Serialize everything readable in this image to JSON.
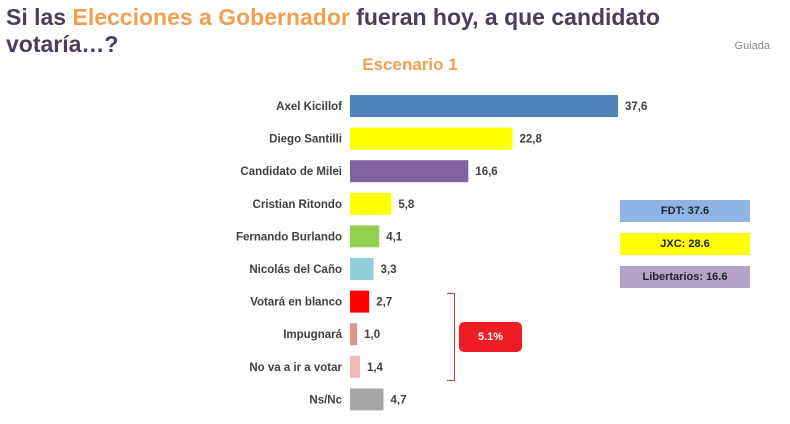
{
  "header": {
    "title_part1": "Si las ",
    "title_highlight": "Elecciones a Gobernador",
    "title_part2": " fueran hoy, a que candidato votaría…?",
    "watermark": "Guiada"
  },
  "chart_data": {
    "type": "bar",
    "orientation": "horizontal",
    "title": "Escenario 1",
    "categories": [
      "Axel Kicillof",
      "Diego Santilli",
      "Candidato de Milei",
      "Cristian Ritondo",
      "Fernando Burlando",
      "Nicolás del Caño",
      "Votará en blanco",
      "Impugnará",
      "No va a ir a votar",
      "Ns/Nc"
    ],
    "values": [
      37.6,
      22.8,
      16.6,
      5.8,
      4.1,
      3.3,
      2.7,
      1.0,
      1.4,
      4.7
    ],
    "value_labels": [
      "37,6",
      "22,8",
      "16,6",
      "5,8",
      "4,1",
      "3,3",
      "2,7",
      "1,0",
      "1,4",
      "4,7"
    ],
    "colors": [
      "#4f81bd",
      "#ffff00",
      "#8064a2",
      "#ffff00",
      "#92d050",
      "#92cddc",
      "#ff0000",
      "#d99694",
      "#f2b8b8",
      "#a6a6a6"
    ],
    "xlim": [
      0,
      38
    ],
    "xlabel": "",
    "ylabel": ""
  },
  "legend": [
    {
      "label": "FDT: 37.6",
      "color": "#8eb4e3"
    },
    {
      "label": "JXC: 28.6",
      "color": "#ffff00"
    },
    {
      "label": "Libertarios: 16.6",
      "color": "#b3a2c7"
    }
  ],
  "annotation": {
    "label": "5.1%",
    "color": "#ee1c25"
  }
}
